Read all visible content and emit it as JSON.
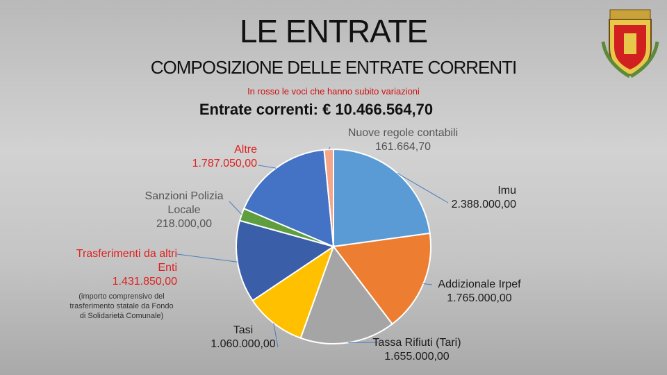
{
  "chart_data": {
    "type": "pie",
    "title": "LE ENTRATE",
    "subtitle": "COMPOSIZIONE DELLE ENTRATE CORRENTI",
    "annotation": "In rosso le voci che hanno subito variazioni",
    "total_text": "Entrate correnti: € 10.466.564,70",
    "categories": [
      "Imu",
      "Addizionale Irpef",
      "Tassa Rifiuti (Tari)",
      "Tasi",
      "Trasferimenti da altri Enti",
      "Sanzioni Polizia Locale",
      "Altre",
      "Nuove regole contabili"
    ],
    "values": [
      2388000,
      1765000,
      1655000,
      1060000,
      1431850,
      218000,
      1787050,
      161664.7
    ],
    "value_labels": [
      "2.388.000,00",
      "1.765.000,00",
      "1.655.000,00",
      "1.060.000,00",
      "1.431.850,00",
      "218.000,00",
      "1.787.050,00",
      "161.664,70"
    ],
    "colors": [
      "#5b9bd5",
      "#ed7d31",
      "#a5a5a5",
      "#ffc000",
      "#3a5fa8",
      "#5e9e3e",
      "#4472c4",
      "#f4a58a"
    ],
    "label_colors": [
      "#1a1a1a",
      "#1a1a1a",
      "#1a1a1a",
      "#1a1a1a",
      "#e02020",
      "#555555",
      "#e02020",
      "#555555"
    ],
    "transfer_note": "(importo comprensivo del trasferimento statale da Fondo di Solidarietà Comunale)"
  }
}
